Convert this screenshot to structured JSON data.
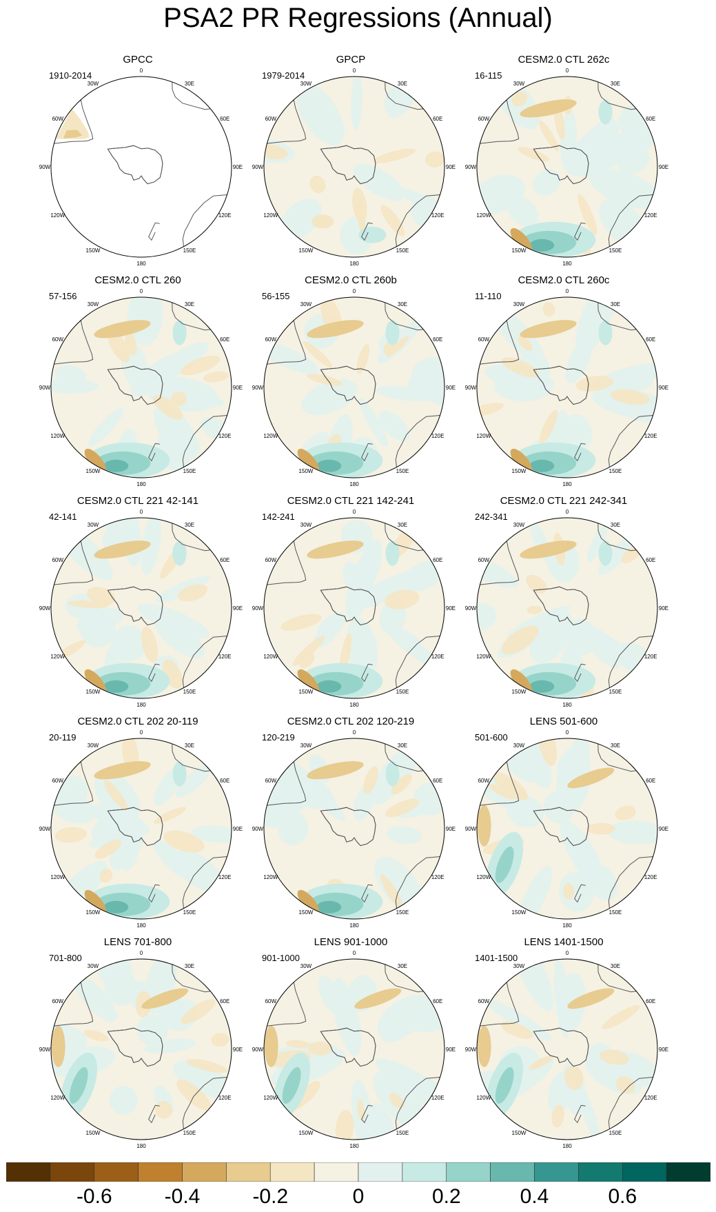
{
  "title": "PSA2 PR Regressions (Annual)",
  "longitude_labels": [
    "0",
    "30E",
    "60E",
    "90E",
    "120E",
    "150E",
    "180",
    "150W",
    "120W",
    "90W",
    "60W",
    "30W"
  ],
  "panels": [
    {
      "title": "GPCC",
      "period": "1910-2014",
      "style": "sparse"
    },
    {
      "title": "GPCP",
      "period": "1979-2014",
      "style": "obs"
    },
    {
      "title": "CESM2.0 CTL 262c",
      "period": "16-115",
      "style": "model"
    },
    {
      "title": "CESM2.0 CTL 260",
      "period": "57-156",
      "style": "model"
    },
    {
      "title": "CESM2.0 CTL 260b",
      "period": "56-155",
      "style": "model"
    },
    {
      "title": "CESM2.0 CTL 260c",
      "period": "11-110",
      "style": "model"
    },
    {
      "title": "CESM2.0 CTL 221 42-141",
      "period": "42-141",
      "style": "model"
    },
    {
      "title": "CESM2.0 CTL 221 142-241",
      "period": "142-241",
      "style": "model"
    },
    {
      "title": "CESM2.0 CTL 221 242-341",
      "period": "242-341",
      "style": "model"
    },
    {
      "title": "CESM2.0 CTL 202 20-119",
      "period": "20-119",
      "style": "model"
    },
    {
      "title": "CESM2.0 CTL 202 120-219",
      "period": "120-219",
      "style": "model"
    },
    {
      "title": "LENS 501-600",
      "period": "501-600",
      "style": "lens"
    },
    {
      "title": "LENS 701-800",
      "period": "701-800",
      "style": "lens"
    },
    {
      "title": "LENS 901-1000",
      "period": "901-1000",
      "style": "lens"
    },
    {
      "title": "LENS 1401-1500",
      "period": "1401-1500",
      "style": "lens"
    }
  ],
  "colorbar": {
    "colors": [
      "#543005",
      "#7a460c",
      "#9c5f17",
      "#bf812d",
      "#d4a95e",
      "#e7cb8f",
      "#f5e6c3",
      "#f5f1e3",
      "#e3f1ee",
      "#c7eae5",
      "#96d4ca",
      "#68b8ae",
      "#35978f",
      "#137a70",
      "#01665e",
      "#003c30"
    ],
    "tick_labels": [
      "-0.6",
      "-0.4",
      "-0.2",
      "0",
      "0.2",
      "0.4",
      "0.6"
    ]
  }
}
